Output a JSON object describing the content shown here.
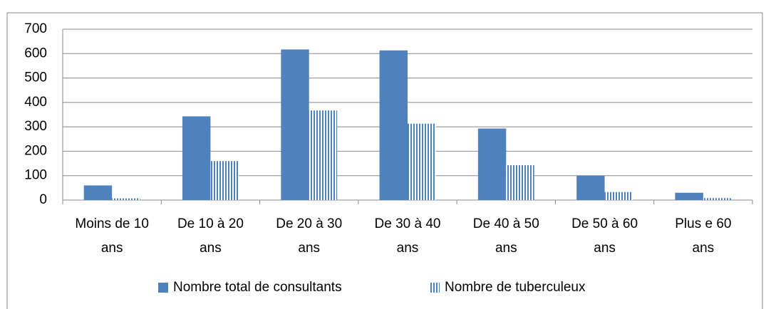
{
  "chart_data": {
    "type": "bar",
    "categories": [
      "Moins de 10 ans",
      "De 10 à 20 ans",
      "De 20 à 30 ans",
      "De 30 à 40 ans",
      "De 40 à 50 ans",
      "De 50 à 60 ans",
      "Plus e 60 ans"
    ],
    "series": [
      {
        "name": "Nombre total de consultants",
        "color": "#4f81bd",
        "pattern": "solid",
        "values": [
          60,
          343,
          617,
          613,
          293,
          100,
          30
        ]
      },
      {
        "name": "Nombre de tuberculeux",
        "color": "#4f81bd",
        "pattern": "vertical-stripes",
        "values": [
          7,
          160,
          367,
          313,
          143,
          33,
          8
        ]
      }
    ],
    "ylim": [
      0,
      700
    ],
    "yticks": [
      0,
      100,
      200,
      300,
      400,
      500,
      600,
      700
    ],
    "grid": true,
    "legend": "bottom"
  }
}
